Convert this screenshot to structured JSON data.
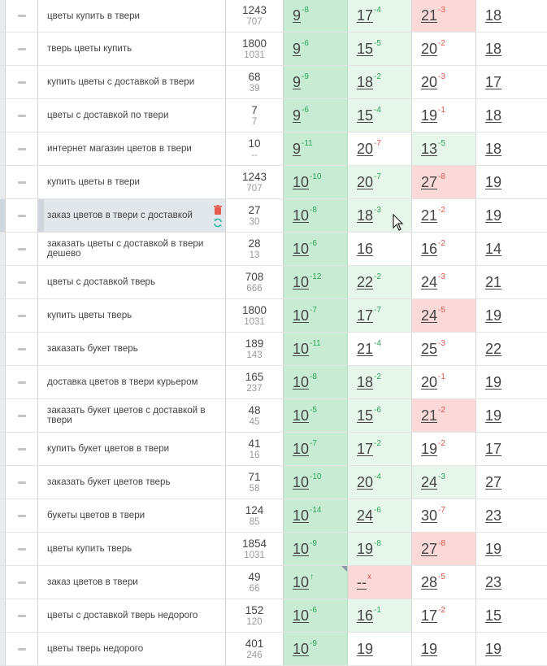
{
  "rows": [
    {
      "kw": "цветы купить в твери",
      "f1": "1243",
      "f2": "707",
      "p1": {
        "v": "9",
        "d": "-8",
        "c": "up"
      },
      "p2": {
        "v": "17",
        "d": "-4",
        "c": "up",
        "bg": "good"
      },
      "p3": {
        "v": "21",
        "d": "-3",
        "c": "down",
        "bg": "bad"
      },
      "p4": {
        "v": "18"
      }
    },
    {
      "kw": "тверь цветы купить",
      "f1": "1800",
      "f2": "1031",
      "p1": {
        "v": "9",
        "d": "-6",
        "c": "up"
      },
      "p2": {
        "v": "15",
        "d": "-5",
        "c": "up",
        "bg": "good"
      },
      "p3": {
        "v": "20",
        "d": "-2",
        "c": "down"
      },
      "p4": {
        "v": "18"
      }
    },
    {
      "kw": "купить цветы с доставкой в твери",
      "f1": "68",
      "f2": "39",
      "p1": {
        "v": "9",
        "d": "-9",
        "c": "up"
      },
      "p2": {
        "v": "18",
        "d": "-2",
        "c": "up",
        "bg": "good"
      },
      "p3": {
        "v": "20",
        "d": "-3",
        "c": "down"
      },
      "p4": {
        "v": "17"
      }
    },
    {
      "kw": "цветы с доставкой по твери",
      "f1": "7",
      "f2": "7",
      "p1": {
        "v": "9",
        "d": "-6",
        "c": "up"
      },
      "p2": {
        "v": "15",
        "d": "-4",
        "c": "up",
        "bg": "good"
      },
      "p3": {
        "v": "19",
        "d": "-1",
        "c": "down"
      },
      "p4": {
        "v": "18"
      }
    },
    {
      "kw": "интернет магазин цветов в твери",
      "f1": "10",
      "f2": "--",
      "p1": {
        "v": "9",
        "d": "-11",
        "c": "up"
      },
      "p2": {
        "v": "20",
        "d": "-7",
        "c": "down"
      },
      "p3": {
        "v": "13",
        "d": "-5",
        "c": "up",
        "bg": "good"
      },
      "p4": {
        "v": "18"
      }
    },
    {
      "kw": "купить цветы в твери",
      "f1": "1243",
      "f2": "707",
      "p1": {
        "v": "10",
        "d": "-10",
        "c": "up"
      },
      "p2": {
        "v": "20",
        "d": "-7",
        "c": "up",
        "bg": "good"
      },
      "p3": {
        "v": "27",
        "d": "-8",
        "c": "down",
        "bg": "bad"
      },
      "p4": {
        "v": "19"
      }
    },
    {
      "kw": "заказ цветов в твери с доставкой",
      "f1": "27",
      "f2": "30",
      "p1": {
        "v": "10",
        "d": "-8",
        "c": "up"
      },
      "p2": {
        "v": "18",
        "d": "-3",
        "c": "up",
        "bg": "good"
      },
      "p3": {
        "v": "21",
        "d": "-2",
        "c": "down"
      },
      "p4": {
        "v": "19"
      },
      "highlight": true
    },
    {
      "kw": "заказать цветы с доставкой в твери дешево",
      "f1": "28",
      "f2": "13",
      "p1": {
        "v": "10",
        "d": "-6",
        "c": "up"
      },
      "p2": {
        "v": "16",
        "d": "",
        "c": "neutral"
      },
      "p3": {
        "v": "16",
        "d": "-2",
        "c": "down"
      },
      "p4": {
        "v": "14"
      }
    },
    {
      "kw": "цветы с доставкой тверь",
      "f1": "708",
      "f2": "666",
      "p1": {
        "v": "10",
        "d": "-12",
        "c": "up"
      },
      "p2": {
        "v": "22",
        "d": "-2",
        "c": "up",
        "bg": "good"
      },
      "p3": {
        "v": "24",
        "d": "-3",
        "c": "down"
      },
      "p4": {
        "v": "21"
      }
    },
    {
      "kw": "купить цветы тверь",
      "f1": "1800",
      "f2": "1031",
      "p1": {
        "v": "10",
        "d": "-7",
        "c": "up"
      },
      "p2": {
        "v": "17",
        "d": "-7",
        "c": "up",
        "bg": "good"
      },
      "p3": {
        "v": "24",
        "d": "-5",
        "c": "down",
        "bg": "bad"
      },
      "p4": {
        "v": "19"
      }
    },
    {
      "kw": "заказать букет тверь",
      "f1": "189",
      "f2": "143",
      "p1": {
        "v": "10",
        "d": "-11",
        "c": "up"
      },
      "p2": {
        "v": "21",
        "d": "-4",
        "c": "up"
      },
      "p3": {
        "v": "25",
        "d": "-3",
        "c": "down"
      },
      "p4": {
        "v": "22"
      }
    },
    {
      "kw": "доставка цветов в твери курьером",
      "f1": "165",
      "f2": "237",
      "p1": {
        "v": "10",
        "d": "-8",
        "c": "up"
      },
      "p2": {
        "v": "18",
        "d": "-2",
        "c": "up",
        "bg": "good"
      },
      "p3": {
        "v": "20",
        "d": "-1",
        "c": "down"
      },
      "p4": {
        "v": "19"
      }
    },
    {
      "kw": "заказать букет цветов с доставкой в твери",
      "f1": "48",
      "f2": "45",
      "p1": {
        "v": "10",
        "d": "-5",
        "c": "up"
      },
      "p2": {
        "v": "15",
        "d": "-6",
        "c": "up",
        "bg": "good"
      },
      "p3": {
        "v": "21",
        "d": "-2",
        "c": "down",
        "bg": "bad"
      },
      "p4": {
        "v": "19"
      }
    },
    {
      "kw": "купить букет цветов в твери",
      "f1": "41",
      "f2": "16",
      "p1": {
        "v": "10",
        "d": "-7",
        "c": "up"
      },
      "p2": {
        "v": "17",
        "d": "-2",
        "c": "up",
        "bg": "good"
      },
      "p3": {
        "v": "19",
        "d": "-2",
        "c": "down"
      },
      "p4": {
        "v": "17"
      }
    },
    {
      "kw": "заказать букет цветов тверь",
      "f1": "71",
      "f2": "58",
      "p1": {
        "v": "10",
        "d": "-10",
        "c": "up"
      },
      "p2": {
        "v": "20",
        "d": "-4",
        "c": "up",
        "bg": "good"
      },
      "p3": {
        "v": "24",
        "d": "-3",
        "c": "up",
        "bg": "good"
      },
      "p4": {
        "v": "27"
      }
    },
    {
      "kw": "букеты цветов в твери",
      "f1": "124",
      "f2": "85",
      "p1": {
        "v": "10",
        "d": "-14",
        "c": "up"
      },
      "p2": {
        "v": "24",
        "d": "-6",
        "c": "up",
        "bg": "good"
      },
      "p3": {
        "v": "30",
        "d": "-7",
        "c": "down"
      },
      "p4": {
        "v": "23"
      }
    },
    {
      "kw": "цветы купить тверь",
      "f1": "1854",
      "f2": "1031",
      "p1": {
        "v": "10",
        "d": "-9",
        "c": "up"
      },
      "p2": {
        "v": "19",
        "d": "-8",
        "c": "up",
        "bg": "good"
      },
      "p3": {
        "v": "27",
        "d": "-8",
        "c": "down",
        "bg": "bad"
      },
      "p4": {
        "v": "19"
      }
    },
    {
      "kw": "заказ цветов в твери",
      "f1": "49",
      "f2": "66",
      "p1": {
        "v": "10",
        "d": "↑",
        "c": "up",
        "corner": true
      },
      "p2": {
        "v": "--",
        "d": "x",
        "c": "down",
        "bg": "bad"
      },
      "p3": {
        "v": "28",
        "d": "-5",
        "c": "down"
      },
      "p4": {
        "v": "23"
      }
    },
    {
      "kw": "цветы с доставкой тверь недорого",
      "f1": "152",
      "f2": "120",
      "p1": {
        "v": "10",
        "d": "-6",
        "c": "up"
      },
      "p2": {
        "v": "16",
        "d": "-1",
        "c": "up",
        "bg": "good"
      },
      "p3": {
        "v": "17",
        "d": "-2",
        "c": "down"
      },
      "p4": {
        "v": "15"
      }
    },
    {
      "kw": "цветы тверь недорого",
      "f1": "401",
      "f2": "246",
      "p1": {
        "v": "10",
        "d": "-9",
        "c": "up"
      },
      "p2": {
        "v": "19",
        "d": "",
        "c": "neutral"
      },
      "p3": {
        "v": "19",
        "d": "",
        "c": "neutral"
      },
      "p4": {
        "v": "19"
      }
    }
  ]
}
